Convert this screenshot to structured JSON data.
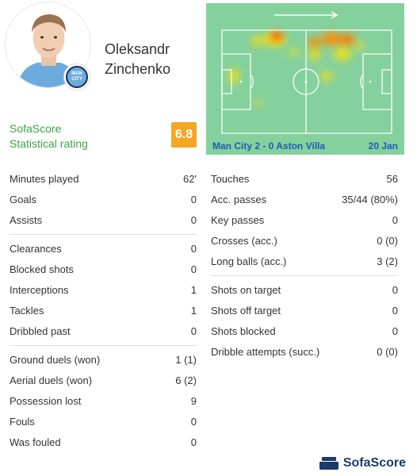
{
  "player": {
    "name_line1": "Oleksandr",
    "name_line2": "Zinchenko",
    "club_badge_text": "MAN CITY"
  },
  "rating": {
    "label_line1": "SofaScore",
    "label_line2": "Statistical rating",
    "value": "6.8",
    "color": "#f5a623"
  },
  "heatmap": {
    "match": "Man City 2 - 0 Aston Villa",
    "date": "20 Jan",
    "pitch_color": "#85d19d",
    "direction": "attacking-right-arrow"
  },
  "stats_left": [
    [
      {
        "label": "Minutes played",
        "value": "62'"
      },
      {
        "label": "Goals",
        "value": "0"
      },
      {
        "label": "Assists",
        "value": "0"
      }
    ],
    [
      {
        "label": "Clearances",
        "value": "0"
      },
      {
        "label": "Blocked shots",
        "value": "0"
      },
      {
        "label": "Interceptions",
        "value": "1"
      },
      {
        "label": "Tackles",
        "value": "1"
      },
      {
        "label": "Dribbled past",
        "value": "0"
      }
    ],
    [
      {
        "label": "Ground duels (won)",
        "value": "1 (1)"
      },
      {
        "label": "Aerial duels (won)",
        "value": "6 (2)"
      },
      {
        "label": "Possession lost",
        "value": "9"
      },
      {
        "label": "Fouls",
        "value": "0"
      },
      {
        "label": "Was fouled",
        "value": "0"
      }
    ]
  ],
  "stats_right": [
    [
      {
        "label": "Touches",
        "value": "56"
      },
      {
        "label": "Acc. passes",
        "value": "35/44 (80%)"
      },
      {
        "label": "Key passes",
        "value": "0"
      },
      {
        "label": "Crosses (acc.)",
        "value": "0 (0)"
      },
      {
        "label": "Long balls (acc.)",
        "value": "3 (2)"
      }
    ],
    [
      {
        "label": "Shots on target",
        "value": "0"
      },
      {
        "label": "Shots off target",
        "value": "0"
      },
      {
        "label": "Shots blocked",
        "value": "0"
      },
      {
        "label": "Dribble attempts (succ.)",
        "value": "0 (0)"
      }
    ]
  ],
  "footer": {
    "brand": "SofaScore",
    "brand_color": "#1a3a6b"
  }
}
